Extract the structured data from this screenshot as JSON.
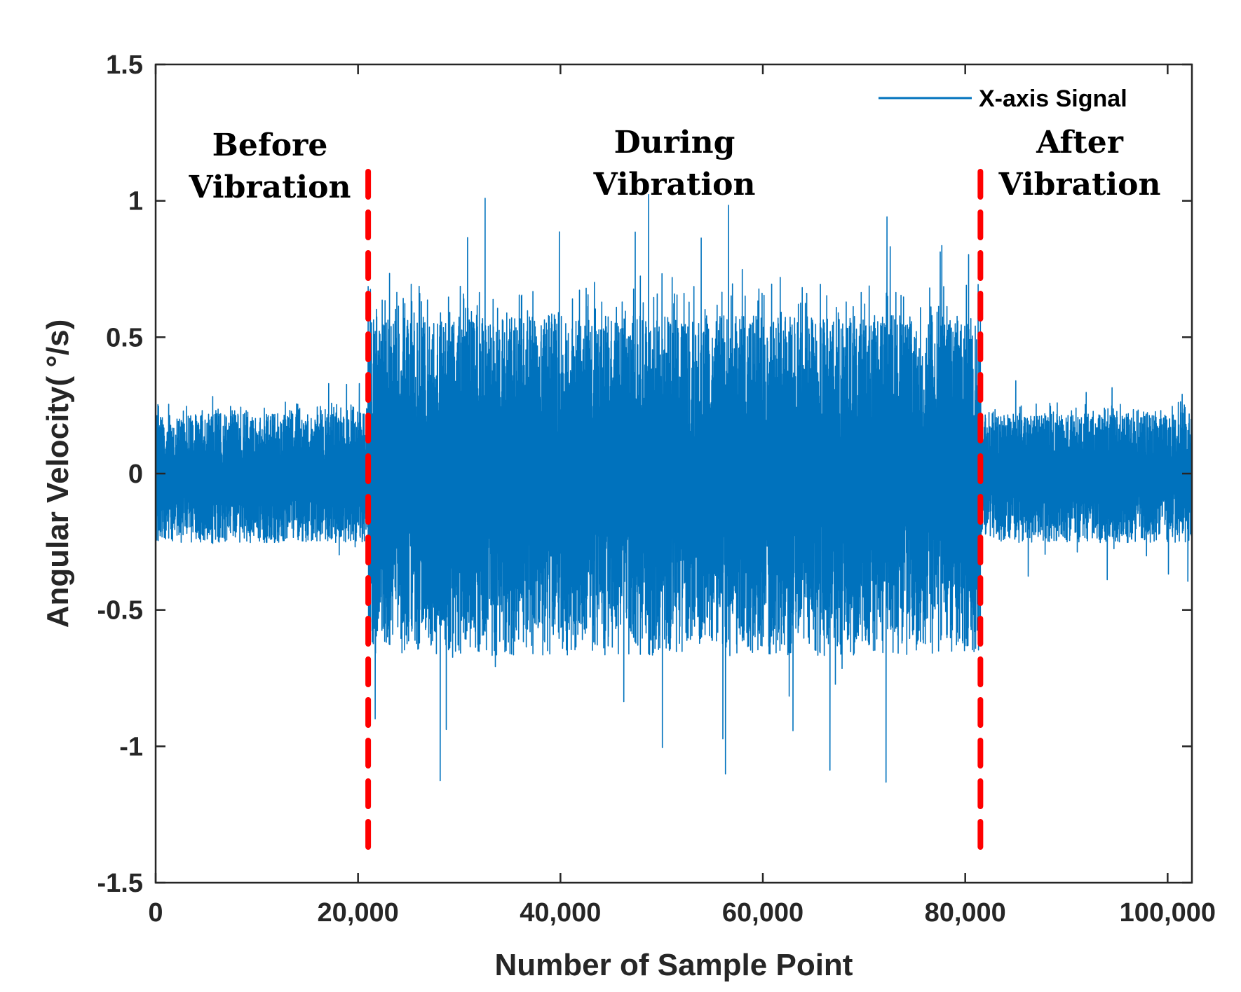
{
  "chart_data": {
    "type": "line",
    "title": "",
    "xlabel": "Number of Sample Point",
    "ylabel": "Angular Velocity( °/s)",
    "xlim": [
      0,
      102400
    ],
    "ylim": [
      -1.5,
      1.5
    ],
    "x_ticks": [
      0,
      20000,
      40000,
      60000,
      80000,
      100000
    ],
    "x_tick_labels": [
      "0",
      "20,000",
      "40,000",
      "60,000",
      "80,000",
      "100,000"
    ],
    "y_ticks": [
      -1.5,
      -1,
      -0.5,
      0,
      0.5,
      1,
      1.5
    ],
    "y_tick_labels": [
      "-1.5",
      "-1",
      "-0.5",
      "0",
      "0.5",
      "1",
      "1.5"
    ],
    "grid": false,
    "legend": {
      "position": "top-right",
      "entries": [
        "X-axis Signal"
      ]
    },
    "series": [
      {
        "name": "X-axis Signal",
        "color": "#0072BD",
        "description": "noise signal centered at 0",
        "segments": [
          {
            "phase": "Before Vibration",
            "x_start": 0,
            "x_end": 21000,
            "typical_amplitude": 0.22,
            "peak_max": 0.34,
            "peak_min": -0.31
          },
          {
            "phase": "During Vibration",
            "x_start": 21000,
            "x_end": 81500,
            "typical_amplitude": 0.58,
            "peak_max": 1.1,
            "peak_min": -1.15
          },
          {
            "phase": "After Vibration",
            "x_start": 81500,
            "x_end": 102400,
            "typical_amplitude": 0.22,
            "peak_max": 0.34,
            "peak_min": -0.4
          }
        ]
      }
    ],
    "boundaries": [
      {
        "x": 21000,
        "color": "#FF0000",
        "style": "dashed"
      },
      {
        "x": 81500,
        "color": "#FF0000",
        "style": "dashed"
      }
    ],
    "annotations": [
      {
        "lines": [
          "Before",
          "Vibration"
        ]
      },
      {
        "lines": [
          "During",
          "Vibration"
        ]
      },
      {
        "lines": [
          "After",
          "Vibration"
        ]
      }
    ]
  }
}
